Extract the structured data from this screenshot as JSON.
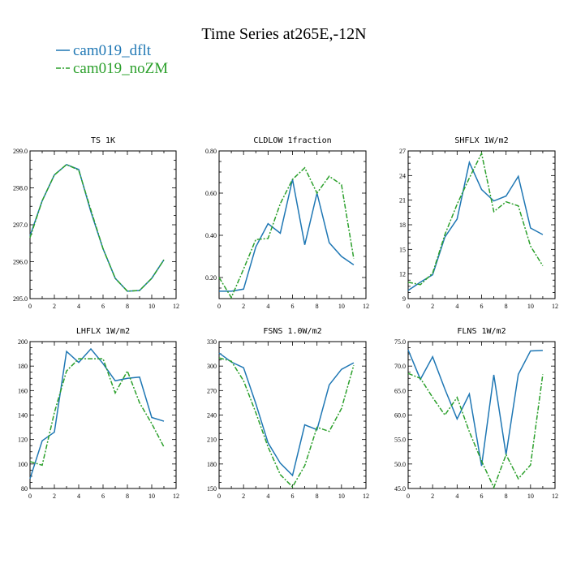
{
  "title": "Time Series at265E,-12N",
  "legend": [
    {
      "name": "cam019_dflt",
      "color": "#1f77b4"
    },
    {
      "name": "cam019_noZM",
      "color": "#2ca02c"
    }
  ],
  "chart_data": [
    {
      "type": "line",
      "title": "TS   1K",
      "x": [
        0,
        1,
        2,
        3,
        4,
        5,
        6,
        7,
        8,
        9,
        10,
        11
      ],
      "xlim": [
        0,
        12
      ],
      "xticks": [
        0,
        2,
        4,
        6,
        8,
        10,
        12
      ],
      "xtick_labels": [
        "0",
        "2",
        "4",
        "6",
        "8",
        "10",
        "12"
      ],
      "ylim": [
        295.0,
        299.0
      ],
      "yticks": [
        295.0,
        296.0,
        297.0,
        298.0,
        299.0
      ],
      "ytick_labels": [
        "295.0",
        "296.0",
        "297.0",
        "298.0",
        "299.0"
      ],
      "series": [
        {
          "name": "cam019_dflt",
          "values": [
            296.7,
            297.65,
            298.35,
            298.63,
            298.5,
            297.35,
            296.35,
            295.55,
            295.2,
            295.22,
            295.55,
            296.05
          ]
        },
        {
          "name": "cam019_noZM",
          "values": [
            296.65,
            297.65,
            298.35,
            298.63,
            298.48,
            297.4,
            296.35,
            295.55,
            295.2,
            295.22,
            295.55,
            296.05
          ]
        }
      ]
    },
    {
      "type": "line",
      "title": "CLDLOW   1fraction",
      "x": [
        0,
        1,
        2,
        3,
        4,
        5,
        6,
        7,
        8,
        9,
        10,
        11
      ],
      "xlim": [
        0,
        12
      ],
      "xticks": [
        0,
        2,
        4,
        6,
        8,
        10,
        12
      ],
      "xtick_labels": [
        "0",
        "2",
        "4",
        "6",
        "8",
        "10",
        "12"
      ],
      "ylim": [
        0.1,
        0.8
      ],
      "yticks": [
        0.2,
        0.4,
        0.6,
        0.8
      ],
      "ytick_labels": [
        "0.20",
        "0.40",
        "0.60",
        "0.80"
      ],
      "series": [
        {
          "name": "cam019_dflt",
          "values": [
            0.135,
            0.135,
            0.145,
            0.345,
            0.455,
            0.41,
            0.665,
            0.355,
            0.6,
            0.365,
            0.3,
            0.26
          ]
        },
        {
          "name": "cam019_noZM",
          "values": [
            0.2,
            0.105,
            0.24,
            0.38,
            0.385,
            0.55,
            0.665,
            0.72,
            0.6,
            0.68,
            0.64,
            0.29
          ]
        }
      ]
    },
    {
      "type": "line",
      "title": "SHFLX   1W/m2",
      "x": [
        0,
        1,
        2,
        3,
        4,
        5,
        6,
        7,
        8,
        9,
        10,
        11
      ],
      "xlim": [
        0,
        12
      ],
      "xticks": [
        0,
        2,
        4,
        6,
        8,
        10,
        12
      ],
      "xtick_labels": [
        "0",
        "2",
        "4",
        "6",
        "8",
        "10",
        "12"
      ],
      "ylim": [
        9,
        27
      ],
      "yticks": [
        9,
        12,
        15,
        18,
        21,
        24,
        27
      ],
      "ytick_labels": [
        "9",
        "12",
        "15",
        "18",
        "21",
        "24",
        "27"
      ],
      "series": [
        {
          "name": "cam019_dflt",
          "values": [
            10.0,
            11.0,
            11.9,
            16.5,
            18.7,
            25.6,
            22.3,
            20.9,
            21.5,
            23.9,
            17.6,
            16.8
          ]
        },
        {
          "name": "cam019_noZM",
          "values": [
            11.0,
            10.7,
            12.1,
            16.8,
            20.5,
            23.7,
            26.7,
            19.6,
            20.8,
            20.3,
            15.4,
            13.0
          ]
        }
      ]
    },
    {
      "type": "line",
      "title": "LHFLX   1W/m2",
      "x": [
        0,
        1,
        2,
        3,
        4,
        5,
        6,
        7,
        8,
        9,
        10,
        11
      ],
      "xlim": [
        0,
        12
      ],
      "xticks": [
        0,
        2,
        4,
        6,
        8,
        10,
        12
      ],
      "xtick_labels": [
        "0",
        "2",
        "4",
        "6",
        "8",
        "10",
        "12"
      ],
      "ylim": [
        80,
        200
      ],
      "yticks": [
        80,
        100,
        120,
        140,
        160,
        180,
        200
      ],
      "ytick_labels": [
        "80",
        "100",
        "120",
        "140",
        "160",
        "180",
        "200"
      ],
      "series": [
        {
          "name": "cam019_dflt",
          "values": [
            88,
            119,
            126,
            192,
            183,
            194,
            182,
            168,
            170,
            171,
            138,
            135
          ]
        },
        {
          "name": "cam019_noZM",
          "values": [
            102,
            99,
            142,
            176,
            186,
            186,
            186,
            158,
            176,
            150,
            133,
            114
          ]
        }
      ]
    },
    {
      "type": "line",
      "title": "FSNS   1.0W/m2",
      "x": [
        0,
        1,
        2,
        3,
        4,
        5,
        6,
        7,
        8,
        9,
        10,
        11
      ],
      "xlim": [
        0,
        12
      ],
      "xticks": [
        0,
        2,
        4,
        6,
        8,
        10,
        12
      ],
      "xtick_labels": [
        "0",
        "2",
        "4",
        "6",
        "8",
        "10",
        "12"
      ],
      "ylim": [
        150,
        330
      ],
      "yticks": [
        150,
        180,
        210,
        240,
        270,
        300,
        330
      ],
      "ytick_labels": [
        "150",
        "180",
        "210",
        "240",
        "270",
        "300",
        "330"
      ],
      "series": [
        {
          "name": "cam019_dflt",
          "values": [
            316,
            305,
            298,
            254,
            206,
            181,
            166,
            228,
            222,
            277,
            296,
            304
          ]
        },
        {
          "name": "cam019_noZM",
          "values": [
            310,
            306,
            282,
            243,
            201,
            167,
            152,
            178,
            225,
            220,
            248,
            301
          ]
        }
      ]
    },
    {
      "type": "line",
      "title": "FLNS   1W/m2",
      "x": [
        0,
        1,
        2,
        3,
        4,
        5,
        6,
        7,
        8,
        9,
        10,
        11
      ],
      "xlim": [
        0,
        12
      ],
      "xticks": [
        0,
        2,
        4,
        6,
        8,
        10,
        12
      ],
      "xtick_labels": [
        "0",
        "2",
        "4",
        "6",
        "8",
        "10",
        "12"
      ],
      "ylim": [
        45.0,
        75.0
      ],
      "yticks": [
        45.0,
        50.0,
        55.0,
        60.0,
        65.0,
        70.0,
        75.0
      ],
      "ytick_labels": [
        "45.0",
        "50.0",
        "55.0",
        "60.0",
        "65.0",
        "70.0",
        "75.0"
      ],
      "series": [
        {
          "name": "cam019_dflt",
          "values": [
            73.3,
            67.3,
            71.9,
            65.3,
            59.2,
            64.3,
            49.6,
            68.2,
            51.9,
            68.3,
            73.1,
            73.2
          ]
        },
        {
          "name": "cam019_noZM",
          "values": [
            68.5,
            67.5,
            63.6,
            60.0,
            63.6,
            56.6,
            50.6,
            45.2,
            51.9,
            47.0,
            49.8,
            68.3
          ]
        }
      ]
    }
  ]
}
